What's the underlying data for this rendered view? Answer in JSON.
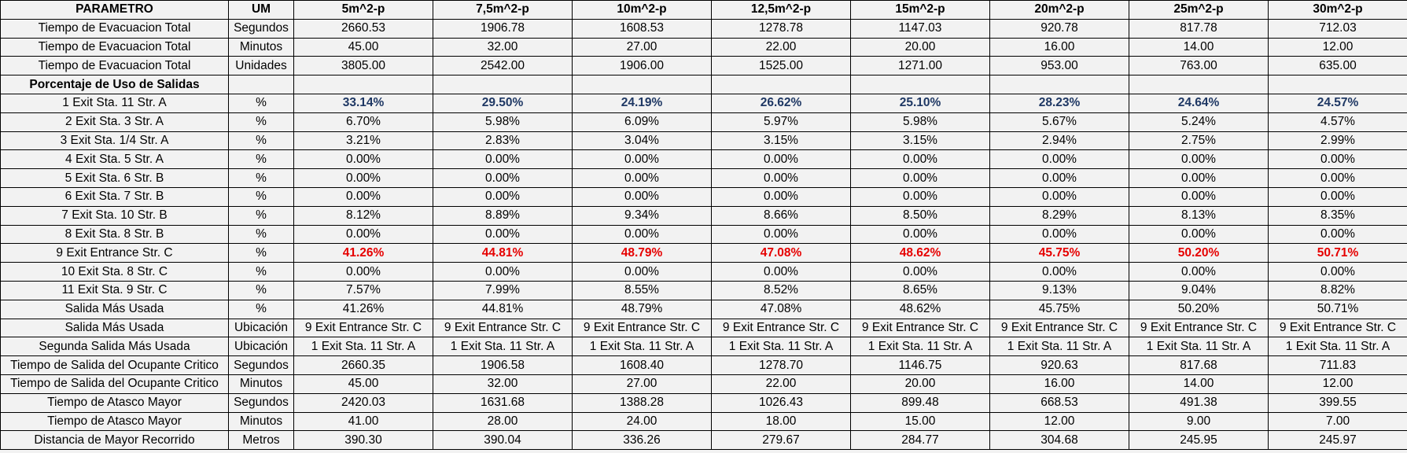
{
  "header": {
    "param": "PARAMETRO",
    "um": "UM",
    "scenarios": [
      "5m^2-p",
      "7,5m^2-p",
      "10m^2-p",
      "12,5m^2-p",
      "15m^2-p",
      "20m^2-p",
      "25m^2-p",
      "30m^2-p"
    ]
  },
  "rows": [
    {
      "param": "Tiempo de Evacuacion Total",
      "um": "Segundos",
      "values": [
        "2660.53",
        "1906.78",
        "1608.53",
        "1278.78",
        "1147.03",
        "920.78",
        "817.78",
        "712.03"
      ]
    },
    {
      "param": "Tiempo de Evacuacion Total",
      "um": "Minutos",
      "values": [
        "45.00",
        "32.00",
        "27.00",
        "22.00",
        "20.00",
        "16.00",
        "14.00",
        "12.00"
      ]
    },
    {
      "param": "Tiempo de Evacuacion Total",
      "um": "Unidades",
      "values": [
        "3805.00",
        "2542.00",
        "1906.00",
        "1525.00",
        "1271.00",
        "953.00",
        "763.00",
        "635.00"
      ]
    },
    {
      "param": "Porcentaje de Uso de Salidas",
      "um": "",
      "values": [
        "",
        "",
        "",
        "",
        "",
        "",
        "",
        ""
      ],
      "section": true
    },
    {
      "param": "1 Exit Sta. 11 Str. A",
      "um": "%",
      "values": [
        "33.14%",
        "29.50%",
        "24.19%",
        "26.62%",
        "25.10%",
        "28.23%",
        "24.64%",
        "24.57%"
      ],
      "highlight": "blue"
    },
    {
      "param": "2 Exit Sta. 3 Str. A",
      "um": "%",
      "values": [
        "6.70%",
        "5.98%",
        "6.09%",
        "5.97%",
        "5.98%",
        "5.67%",
        "5.24%",
        "4.57%"
      ]
    },
    {
      "param": "3 Exit Sta. 1/4 Str. A",
      "um": "%",
      "values": [
        "3.21%",
        "2.83%",
        "3.04%",
        "3.15%",
        "3.15%",
        "2.94%",
        "2.75%",
        "2.99%"
      ]
    },
    {
      "param": "4 Exit Sta. 5 Str. A",
      "um": "%",
      "values": [
        "0.00%",
        "0.00%",
        "0.00%",
        "0.00%",
        "0.00%",
        "0.00%",
        "0.00%",
        "0.00%"
      ]
    },
    {
      "param": "5 Exit Sta. 6 Str. B",
      "um": "%",
      "values": [
        "0.00%",
        "0.00%",
        "0.00%",
        "0.00%",
        "0.00%",
        "0.00%",
        "0.00%",
        "0.00%"
      ]
    },
    {
      "param": "6 Exit Sta. 7 Str. B",
      "um": "%",
      "values": [
        "0.00%",
        "0.00%",
        "0.00%",
        "0.00%",
        "0.00%",
        "0.00%",
        "0.00%",
        "0.00%"
      ]
    },
    {
      "param": "7 Exit Sta. 10 Str. B",
      "um": "%",
      "values": [
        "8.12%",
        "8.89%",
        "9.34%",
        "8.66%",
        "8.50%",
        "8.29%",
        "8.13%",
        "8.35%"
      ]
    },
    {
      "param": "8 Exit Sta. 8 Str. B",
      "um": "%",
      "values": [
        "0.00%",
        "0.00%",
        "0.00%",
        "0.00%",
        "0.00%",
        "0.00%",
        "0.00%",
        "0.00%"
      ]
    },
    {
      "param": "9 Exit Entrance Str. C",
      "um": "%",
      "values": [
        "41.26%",
        "44.81%",
        "48.79%",
        "47.08%",
        "48.62%",
        "45.75%",
        "50.20%",
        "50.71%"
      ],
      "highlight": "red"
    },
    {
      "param": "10 Exit Sta. 8 Str. C",
      "um": "%",
      "values": [
        "0.00%",
        "0.00%",
        "0.00%",
        "0.00%",
        "0.00%",
        "0.00%",
        "0.00%",
        "0.00%"
      ]
    },
    {
      "param": "11 Exit Sta. 9 Str. C",
      "um": "%",
      "values": [
        "7.57%",
        "7.99%",
        "8.55%",
        "8.52%",
        "8.65%",
        "9.13%",
        "9.04%",
        "8.82%"
      ]
    },
    {
      "param": "Salida Más Usada",
      "um": "%",
      "values": [
        "41.26%",
        "44.81%",
        "48.79%",
        "47.08%",
        "48.62%",
        "45.75%",
        "50.20%",
        "50.71%"
      ]
    },
    {
      "param": "Salida Más Usada",
      "um": "Ubicación",
      "values": [
        "9 Exit Entrance Str. C",
        "9 Exit Entrance Str. C",
        "9 Exit Entrance Str. C",
        "9 Exit Entrance Str. C",
        "9 Exit Entrance Str. C",
        "9 Exit Entrance Str. C",
        "9 Exit Entrance Str. C",
        "9 Exit Entrance Str. C"
      ]
    },
    {
      "param": "Segunda Salida Más Usada",
      "um": "Ubicación",
      "values": [
        "1 Exit Sta. 11 Str. A",
        "1 Exit Sta. 11 Str. A",
        "1 Exit Sta. 11 Str. A",
        "1 Exit Sta. 11 Str. A",
        "1 Exit Sta. 11 Str. A",
        "1 Exit Sta. 11 Str. A",
        "1 Exit Sta. 11 Str. A",
        "1 Exit Sta. 11 Str. A"
      ]
    },
    {
      "param": "Tiempo de Salida del Ocupante Critico",
      "um": "Segundos",
      "values": [
        "2660.35",
        "1906.58",
        "1608.40",
        "1278.70",
        "1146.75",
        "920.63",
        "817.68",
        "711.83"
      ]
    },
    {
      "param": "Tiempo de Salida del Ocupante Critico",
      "um": "Minutos",
      "values": [
        "45.00",
        "32.00",
        "27.00",
        "22.00",
        "20.00",
        "16.00",
        "14.00",
        "12.00"
      ]
    },
    {
      "param": "Tiempo de Atasco Mayor",
      "um": "Segundos",
      "values": [
        "2420.03",
        "1631.68",
        "1388.28",
        "1026.43",
        "899.48",
        "668.53",
        "491.38",
        "399.55"
      ]
    },
    {
      "param": "Tiempo de Atasco Mayor",
      "um": "Minutos",
      "values": [
        "41.00",
        "28.00",
        "24.00",
        "18.00",
        "15.00",
        "12.00",
        "9.00",
        "7.00"
      ]
    },
    {
      "param": "Distancia de Mayor Recorrido",
      "um": "Metros",
      "values": [
        "390.30",
        "390.04",
        "336.26",
        "279.67",
        "284.77",
        "304.68",
        "245.95",
        "245.97"
      ]
    }
  ],
  "colors": {
    "background": "#f2f2f2",
    "highlight_blue": "#1f3864",
    "highlight_red": "#e60000",
    "grid": "#000000"
  }
}
